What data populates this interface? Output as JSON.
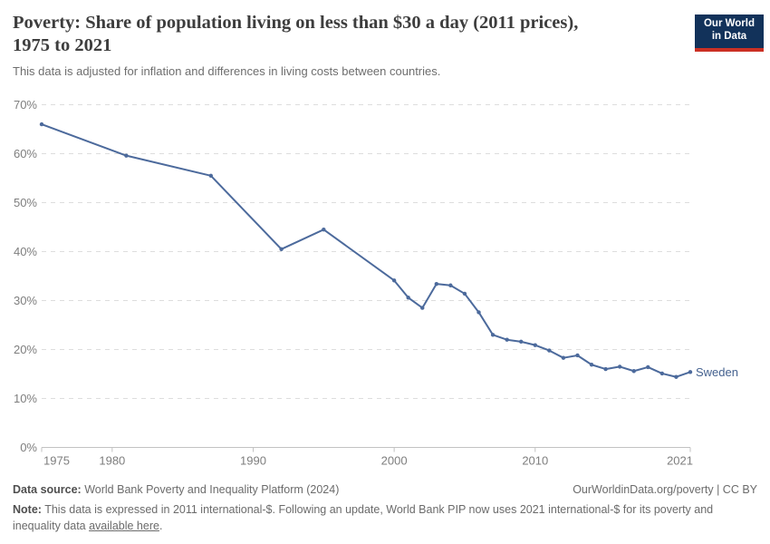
{
  "header": {
    "title_line1": "Poverty: Share of population living on less than $30 a day (2011 prices),",
    "title_line2": "1975 to 2021",
    "subtitle": "This data is adjusted for inflation and differences in living costs between countries."
  },
  "logo": {
    "line1": "Our World",
    "line2": "in Data",
    "bg_color": "#12325a",
    "bar_color": "#cb3024"
  },
  "chart_data": {
    "type": "line",
    "title": "Poverty: Share of population living on less than $30 a day (2011 prices), 1975 to 2021",
    "subtitle": "This data is adjusted for inflation and differences in living costs between countries.",
    "x": [
      1975,
      1981,
      1987,
      1992,
      1995,
      2000,
      2001,
      2002,
      2003,
      2004,
      2005,
      2006,
      2007,
      2008,
      2009,
      2010,
      2011,
      2012,
      2013,
      2014,
      2015,
      2016,
      2017,
      2018,
      2019,
      2020,
      2021
    ],
    "series": [
      {
        "name": "Sweden",
        "color": "#4c6a9c",
        "values": [
          66.0,
          59.6,
          55.5,
          40.5,
          44.5,
          34.1,
          30.6,
          28.5,
          33.4,
          33.1,
          31.4,
          27.6,
          23.0,
          22.0,
          21.6,
          20.9,
          19.8,
          18.3,
          18.8,
          16.9,
          16.0,
          16.5,
          15.6,
          16.4,
          15.1,
          14.4,
          15.4
        ]
      }
    ],
    "xlabel": "",
    "ylabel": "",
    "xlim": [
      1975,
      2021
    ],
    "ylim": [
      0,
      70
    ],
    "y_tick_step": 10,
    "y_tick_suffix": "%",
    "x_ticks": [
      1975,
      1980,
      1990,
      2000,
      2010,
      2021
    ],
    "grid": "horizontal-dashed",
    "legend_position": "end-of-line-label",
    "end_label": "Sweden",
    "colors": {
      "line": "#4c6a9c",
      "end_label": "#44618f",
      "gridline": "#dddddd",
      "axis": "#c2c2c2",
      "tick_label": "#7e7e7e"
    }
  },
  "footer": {
    "datasource_label": "Data source:",
    "datasource_text": "World Bank Poverty and Inequality Platform (2024)",
    "rights_link": "OurWorldinData.org/poverty",
    "rights_sep": " | ",
    "rights_license": "CC BY",
    "note_label": "Note:",
    "note_text_before_link": "This data is expressed in 2011 international-$. Following an update, World Bank PIP now uses 2021 international-$ for its poverty and inequality data",
    "note_link": "available here",
    "note_after_link": "."
  }
}
